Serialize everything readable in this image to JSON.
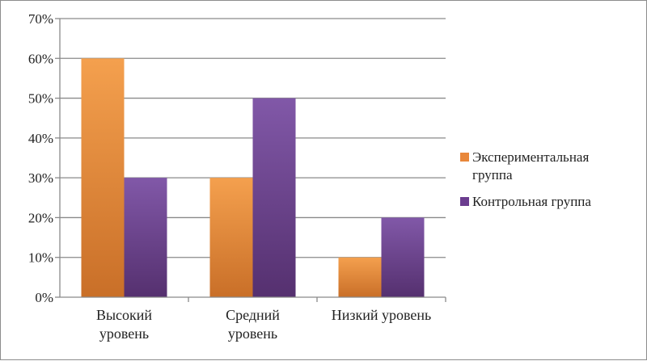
{
  "chart_data": {
    "type": "bar",
    "categories": [
      [
        "Высокий",
        "уровень"
      ],
      [
        "Средний",
        "уровень"
      ],
      [
        "Низкий уровень"
      ]
    ],
    "series": [
      {
        "name": [
          "Экспериментальная",
          "группа"
        ],
        "values": [
          60,
          30,
          10
        ],
        "color": "#e8873a"
      },
      {
        "name": [
          "Контрольная группа"
        ],
        "values": [
          30,
          50,
          20
        ],
        "color": "#6b3d8f"
      }
    ],
    "ylim": [
      0,
      70
    ],
    "ytick_step": 10,
    "ytick_labels": [
      "0%",
      "10%",
      "20%",
      "30%",
      "40%",
      "50%",
      "60%",
      "70%"
    ],
    "grid": true,
    "legend_position": "right"
  }
}
